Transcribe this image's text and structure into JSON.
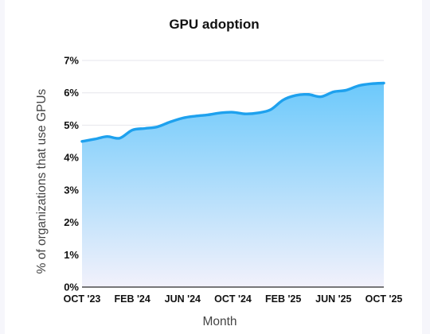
{
  "chart_data": {
    "type": "area",
    "title": "GPU adoption",
    "xlabel": "Month",
    "ylabel": "% of organizations that use GPUs",
    "ylim": [
      0,
      7
    ],
    "y_ticks": [
      "0%",
      "1%",
      "2%",
      "3%",
      "4%",
      "5%",
      "6%",
      "7%"
    ],
    "x_tick_labels": [
      "OCT '23",
      "FEB '24",
      "JUN '24",
      "OCT '24",
      "FEB '25",
      "JUN '25",
      "OCT '25"
    ],
    "grid": true,
    "colors": {
      "line": "#1ea1ee",
      "fill_top": "#6cc9fb",
      "fill_bottom": "#f2f1fb"
    },
    "x": [
      "OCT '23",
      "NOV '23",
      "DEC '23",
      "JAN '24",
      "FEB '24",
      "MAR '24",
      "APR '24",
      "MAY '24",
      "JUN '24",
      "JUL '24",
      "AUG '24",
      "SEP '24",
      "OCT '24",
      "NOV '24",
      "DEC '24",
      "JAN '25",
      "FEB '25",
      "MAR '25",
      "APR '25",
      "MAY '25",
      "JUN '25",
      "JUL '25",
      "AUG '25",
      "SEP '25",
      "OCT '25"
    ],
    "values": [
      4.5,
      4.57,
      4.65,
      4.6,
      4.85,
      4.9,
      4.95,
      5.1,
      5.22,
      5.28,
      5.32,
      5.38,
      5.4,
      5.35,
      5.38,
      5.48,
      5.78,
      5.92,
      5.95,
      5.88,
      6.03,
      6.08,
      6.22,
      6.28,
      6.3
    ]
  }
}
